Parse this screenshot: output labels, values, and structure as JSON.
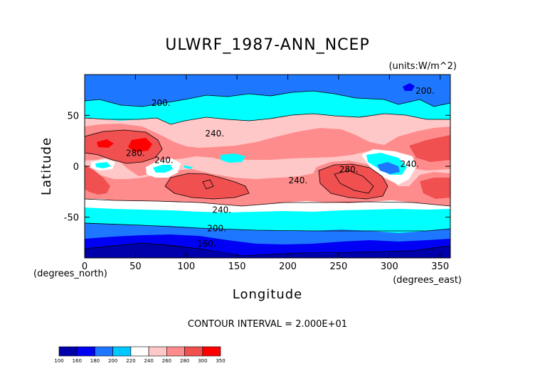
{
  "chart_data": {
    "type": "heatmap",
    "title": "ULWRF_1987-ANN_NCEP",
    "units_label": "(units:W/m^2)",
    "xlabel": "Longitude",
    "ylabel": "Latitude",
    "x_unit_label": "(degrees_east)",
    "y_unit_label": "(degrees_north)",
    "xlim": [
      0,
      360
    ],
    "ylim": [
      -90,
      90
    ],
    "x_ticks": [
      "0",
      "50",
      "100",
      "150",
      "200",
      "250",
      "300",
      "350"
    ],
    "y_ticks": [
      "50",
      "0",
      "-50"
    ],
    "x_tick_values": [
      0,
      50,
      100,
      150,
      200,
      250,
      300,
      350
    ],
    "y_tick_values": [
      50,
      0,
      -50
    ],
    "contour_interval_text": "CONTOUR INTERVAL = 2.000E+01",
    "contour_labels": [
      {
        "text": "200.",
        "lon": 75,
        "lat": 62
      },
      {
        "text": "200.",
        "lon": 335,
        "lat": 74
      },
      {
        "text": "240.",
        "lon": 128,
        "lat": 32
      },
      {
        "text": "280.",
        "lon": 50,
        "lat": 13
      },
      {
        "text": "240.",
        "lon": 78,
        "lat": 6
      },
      {
        "text": "240.",
        "lon": 210,
        "lat": -14
      },
      {
        "text": "280.",
        "lon": 260,
        "lat": -3
      },
      {
        "text": "240.",
        "lon": 320,
        "lat": 2
      },
      {
        "text": "240.",
        "lon": 135,
        "lat": -43
      },
      {
        "text": "200.",
        "lon": 130,
        "lat": -61
      },
      {
        "text": "160.",
        "lon": 120,
        "lat": -76
      }
    ],
    "colorbar": {
      "levels": [
        "100",
        "160",
        "180",
        "200",
        "220",
        "240",
        "260",
        "280",
        "300",
        "350"
      ],
      "colors": [
        "#0000aa",
        "#0000f5",
        "#1e78ff",
        "#00c8ff",
        "#ffffff",
        "#ffc8c8",
        "#ff8c8c",
        "#f05050",
        "#ff0000"
      ]
    }
  }
}
